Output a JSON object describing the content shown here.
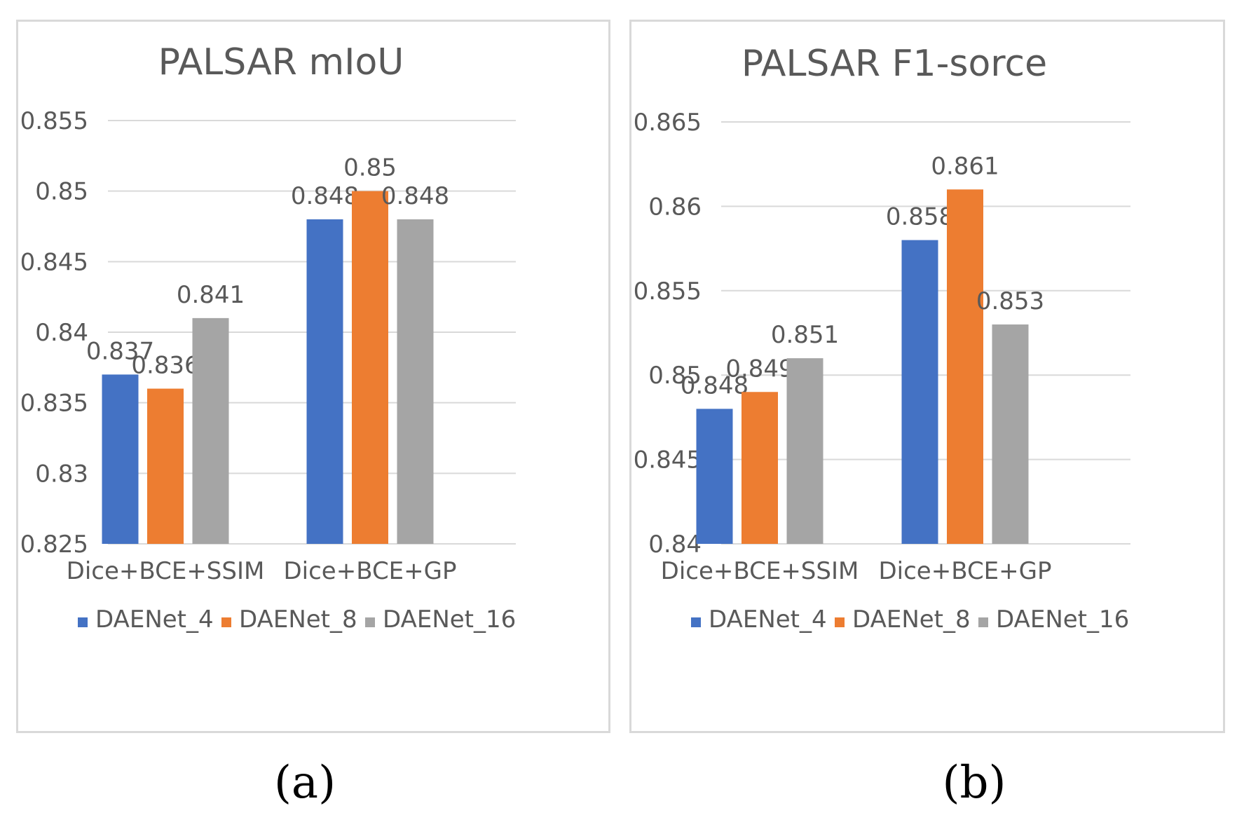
{
  "chart_data": [
    {
      "type": "bar",
      "title": "PALSAR mIoU",
      "categories": [
        "Dice+BCE+SSIM",
        "Dice+BCE+GP"
      ],
      "series": [
        {
          "name": "DAENet_4",
          "color": "#4472c4",
          "values": [
            0.837,
            0.848
          ]
        },
        {
          "name": "DAENet_8",
          "color": "#ed7d31",
          "values": [
            0.836,
            0.85
          ]
        },
        {
          "name": "DAENet_16",
          "color": "#a5a5a5",
          "values": [
            0.841,
            0.848
          ]
        }
      ],
      "data_labels": [
        [
          "0.837",
          "0.848"
        ],
        [
          "0.836",
          "0.85"
        ],
        [
          "0.841",
          "0.848"
        ]
      ],
      "ylim": [
        0.825,
        0.855
      ],
      "yticks": [
        "0.825",
        "0.83",
        "0.835",
        "0.84",
        "0.845",
        "0.85",
        "0.855"
      ],
      "legend": "bottom",
      "grid": true,
      "xlabel": "",
      "ylabel": ""
    },
    {
      "type": "bar",
      "title": "PALSAR F1-sorce",
      "categories": [
        "Dice+BCE+SSIM",
        "Dice+BCE+GP"
      ],
      "series": [
        {
          "name": "DAENet_4",
          "color": "#4472c4",
          "values": [
            0.848,
            0.858
          ]
        },
        {
          "name": "DAENet_8",
          "color": "#ed7d31",
          "values": [
            0.849,
            0.861
          ]
        },
        {
          "name": "DAENet_16",
          "color": "#a5a5a5",
          "values": [
            0.851,
            0.853
          ]
        }
      ],
      "data_labels": [
        [
          "0.848",
          "0.858"
        ],
        [
          "0.849",
          "0.861"
        ],
        [
          "0.851",
          "0.853"
        ]
      ],
      "ylim": [
        0.84,
        0.865
      ],
      "yticks": [
        "0.84",
        "0.845",
        "0.85",
        "0.855",
        "0.86",
        "0.865"
      ],
      "legend": "bottom",
      "grid": true,
      "xlabel": "",
      "ylabel": ""
    }
  ],
  "subfigure_labels": [
    "(a)",
    "(b)"
  ]
}
